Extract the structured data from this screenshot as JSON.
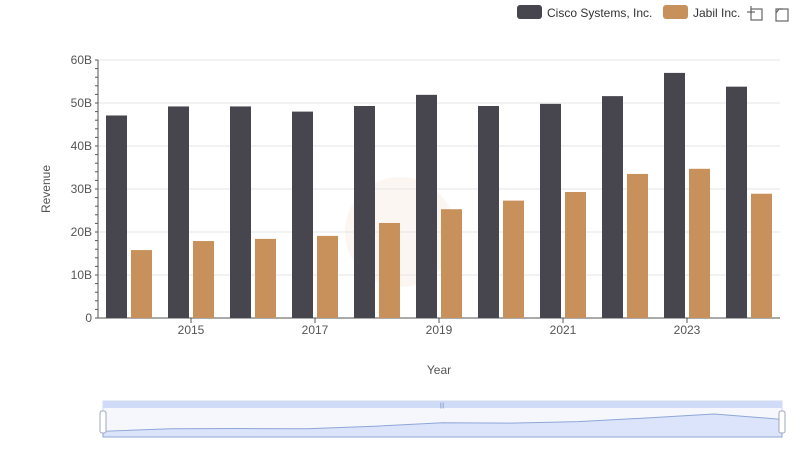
{
  "colors": {
    "cisco": "#47464f",
    "jabil": "#c8915c",
    "grid": "#e6e6e6",
    "axis": "#555555",
    "zoom_fill": "#dbe4fa",
    "zoom_line": "#8fa6d8"
  },
  "icons": [
    "restore-icon",
    "save-image-icon"
  ],
  "chart_data": {
    "type": "bar",
    "xlabel": "Year",
    "ylabel": "Revenue",
    "categories": [
      "2014",
      "2015",
      "2016",
      "2017",
      "2018",
      "2019",
      "2020",
      "2021",
      "2022",
      "2023",
      "2024"
    ],
    "x_tick_labels": [
      "2015",
      "2017",
      "2019",
      "2021",
      "2023"
    ],
    "y_tick_labels": [
      "0",
      "10B",
      "20B",
      "30B",
      "40B",
      "50B",
      "60B"
    ],
    "ylim": [
      0,
      60
    ],
    "value_unit": "B",
    "grid": true,
    "legend_position": "top-right",
    "series": [
      {
        "name": "Cisco Systems, Inc.",
        "color": "#47464f",
        "values": [
          47.1,
          49.2,
          49.2,
          48.0,
          49.3,
          51.9,
          49.3,
          49.8,
          51.6,
          57.0,
          53.8
        ]
      },
      {
        "name": "Jabil Inc.",
        "color": "#c8915c",
        "values": [
          15.8,
          17.9,
          18.4,
          19.1,
          22.1,
          25.3,
          27.3,
          29.3,
          33.5,
          34.7,
          28.9
        ]
      }
    ]
  }
}
